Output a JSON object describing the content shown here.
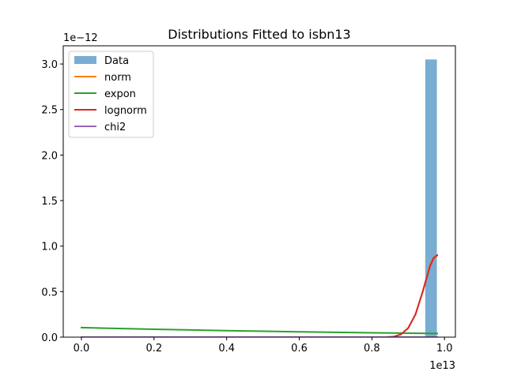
{
  "chart_data": {
    "type": "line",
    "title": "Distributions Fitted to isbn13",
    "xlabel": "",
    "ylabel": "",
    "x_offset_text": "1e13",
    "y_offset_text": "1e−12",
    "xlim": [
      -0.05,
      1.03
    ],
    "ylim": [
      0,
      3.2
    ],
    "xticks": [
      0.0,
      0.2,
      0.4,
      0.6,
      0.8,
      1.0
    ],
    "xtick_labels": [
      "0.0",
      "0.2",
      "0.4",
      "0.6",
      "0.8",
      "1.0"
    ],
    "yticks": [
      0.0,
      0.5,
      1.0,
      1.5,
      2.0,
      2.5,
      3.0
    ],
    "ytick_labels": [
      "0.0",
      "0.5",
      "1.0",
      "1.5",
      "2.0",
      "2.5",
      "3.0"
    ],
    "grid": false,
    "legend_position": "top-left",
    "histogram": {
      "name": "Data",
      "color": "#1f77b4",
      "opacity": 0.6,
      "bins": [
        {
          "x0": 0.947,
          "x1": 0.979,
          "height": 3.05
        }
      ]
    },
    "series": [
      {
        "name": "norm",
        "color": "#ff7f0e",
        "x": [
          0.0,
          0.2,
          0.4,
          0.6,
          0.8,
          0.84,
          0.86,
          0.88,
          0.9,
          0.92,
          0.94,
          0.96,
          0.98
        ],
        "y": [
          0.0,
          0.0,
          0.0,
          0.0,
          0.0,
          0.0,
          0.005,
          0.03,
          0.1,
          0.25,
          0.5,
          0.8,
          0.9
        ]
      },
      {
        "name": "expon",
        "color": "#2ca02c",
        "x": [
          0.0,
          0.2,
          0.4,
          0.6,
          0.8,
          0.98
        ],
        "y": [
          0.105,
          0.087,
          0.072,
          0.059,
          0.048,
          0.04
        ]
      },
      {
        "name": "lognorm",
        "color": "#d62728",
        "x": [
          0.0,
          0.2,
          0.4,
          0.6,
          0.8,
          0.84,
          0.86,
          0.88,
          0.9,
          0.92,
          0.94,
          0.96,
          0.97,
          0.98
        ],
        "y": [
          0.0,
          0.0,
          0.0,
          0.0,
          0.0,
          0.0,
          0.005,
          0.03,
          0.1,
          0.25,
          0.5,
          0.78,
          0.87,
          0.9
        ]
      },
      {
        "name": "chi2",
        "color": "#9467bd",
        "x": [
          0.0,
          0.2,
          0.4,
          0.6,
          0.8,
          0.98
        ],
        "y": [
          0.0,
          0.0,
          0.0,
          0.0,
          0.0,
          0.0
        ]
      }
    ]
  }
}
